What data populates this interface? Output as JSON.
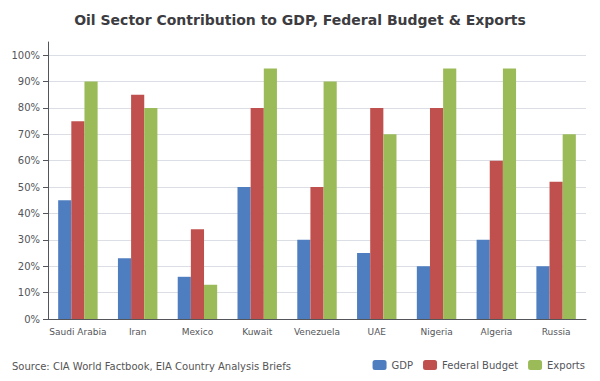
{
  "chart_data": {
    "type": "bar",
    "title": "Oil Sector Contribution to GDP, Federal Budget & Exports",
    "categories": [
      "Saudi Arabia",
      "Iran",
      "Mexico",
      "Kuwait",
      "Venezuela",
      "UAE",
      "Nigeria",
      "Algeria",
      "Russia"
    ],
    "series": [
      {
        "name": "GDP",
        "color": "#4F7EC0",
        "values": [
          45,
          23,
          16,
          50,
          30,
          25,
          20,
          30,
          20
        ]
      },
      {
        "name": "Federal Budget",
        "color": "#C0504D",
        "values": [
          75,
          85,
          34,
          80,
          50,
          80,
          80,
          60,
          52
        ]
      },
      {
        "name": "Exports",
        "color": "#9BBB59",
        "values": [
          90,
          80,
          13,
          95,
          90,
          70,
          95,
          95,
          70
        ]
      }
    ],
    "ylim": [
      0,
      105
    ],
    "yticks": [
      {
        "value": 0,
        "label": "0%"
      },
      {
        "value": 10,
        "label": "10%"
      },
      {
        "value": 20,
        "label": "20%"
      },
      {
        "value": 30,
        "label": "30%"
      },
      {
        "value": 40,
        "label": "40%"
      },
      {
        "value": 50,
        "label": "50%"
      },
      {
        "value": 60,
        "label": "60%"
      },
      {
        "value": 70,
        "label": "70%"
      },
      {
        "value": 80,
        "label": "80%"
      },
      {
        "value": 90,
        "label": "90%"
      },
      {
        "value": 100,
        "label": "100%"
      }
    ],
    "grid": true,
    "legend": "bottom",
    "annotations": [
      "Source: CIA World Factbook, EIA Country Analysis Briefs"
    ]
  }
}
